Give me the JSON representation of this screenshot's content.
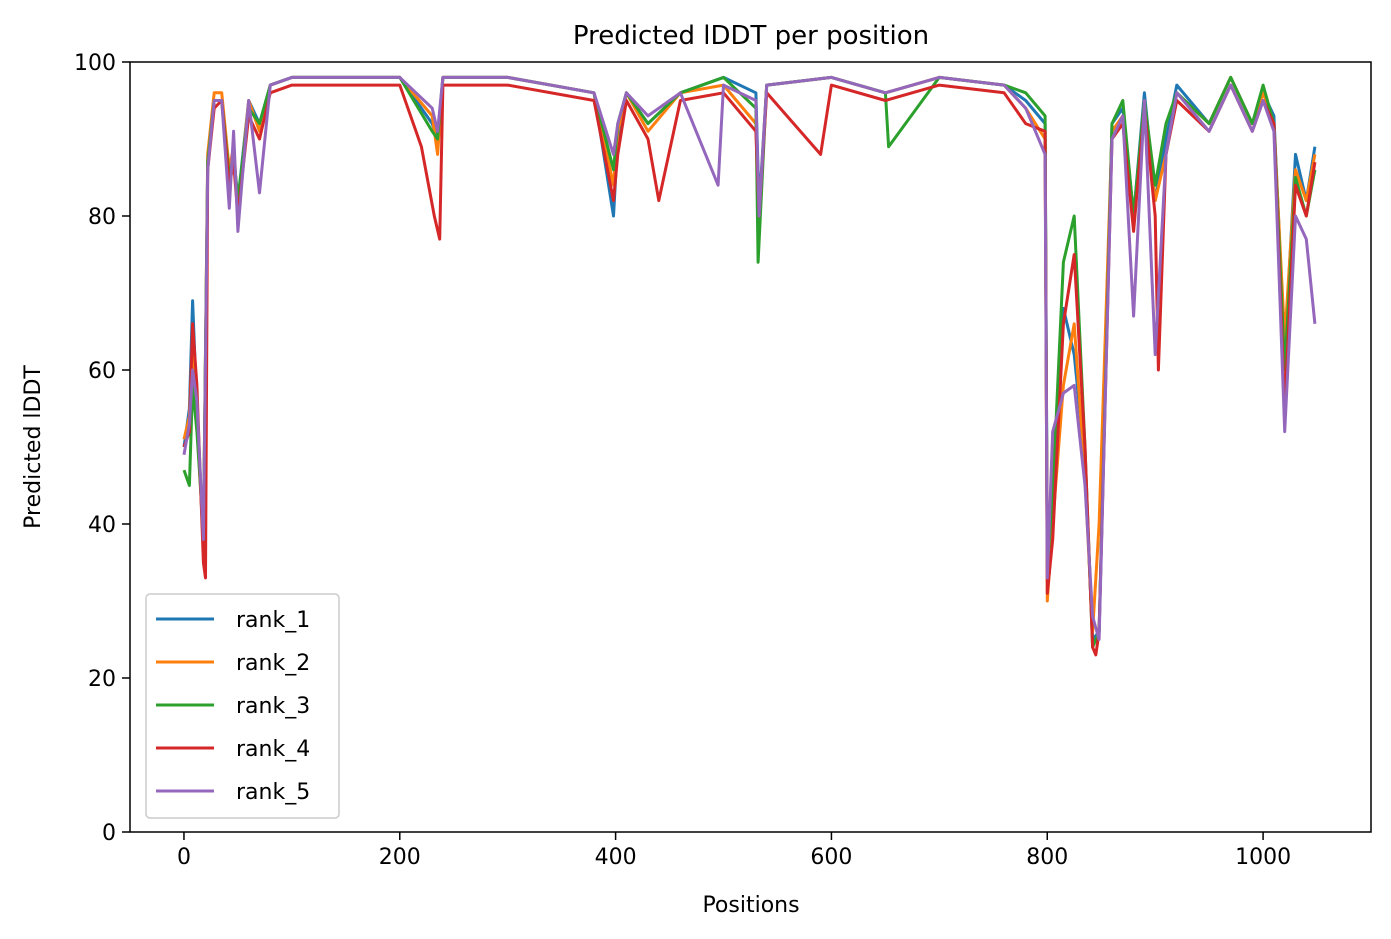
{
  "chart_data": {
    "type": "line",
    "title": "Predicted lDDT per position",
    "xlabel": "Positions",
    "ylabel": "Predicted lDDT",
    "xlim": [
      -50,
      1100
    ],
    "ylim": [
      0,
      100
    ],
    "xticks": [
      "0",
      "200",
      "400",
      "600",
      "800",
      "1000"
    ],
    "yticks": [
      "0",
      "20",
      "40",
      "60",
      "80",
      "100"
    ],
    "grid": false,
    "legend_position": "lower-left",
    "series": [
      {
        "name": "rank_1",
        "color": "#1f77b4",
        "x": [
          0,
          5,
          8,
          12,
          18,
          22,
          28,
          35,
          42,
          46,
          50,
          60,
          70,
          80,
          100,
          150,
          200,
          230,
          235,
          240,
          300,
          380,
          398,
          402,
          410,
          430,
          460,
          500,
          530,
          533,
          540,
          600,
          650,
          700,
          760,
          780,
          798,
          800,
          805,
          815,
          825,
          835,
          842,
          848,
          860,
          870,
          880,
          890,
          900,
          910,
          920,
          950,
          970,
          990,
          1000,
          1010,
          1020,
          1030,
          1040,
          1048
        ],
        "y": [
          50,
          55,
          69,
          55,
          37,
          87,
          95,
          95,
          85,
          88,
          82,
          95,
          92,
          97,
          98,
          98,
          98,
          92,
          90,
          98,
          98,
          96,
          80,
          90,
          96,
          92,
          96,
          98,
          96,
          81,
          97,
          98,
          96,
          98,
          97,
          95,
          92,
          35,
          42,
          68,
          62,
          48,
          25,
          26,
          92,
          94,
          80,
          96,
          82,
          90,
          97,
          92,
          98,
          92,
          96,
          93,
          62,
          88,
          82,
          89
        ]
      },
      {
        "name": "rank_2",
        "color": "#ff7f0e",
        "x": [
          0,
          5,
          8,
          12,
          18,
          22,
          28,
          35,
          42,
          46,
          50,
          60,
          70,
          80,
          100,
          150,
          200,
          230,
          235,
          240,
          300,
          380,
          398,
          402,
          410,
          430,
          460,
          500,
          530,
          533,
          540,
          600,
          650,
          700,
          760,
          780,
          798,
          800,
          805,
          815,
          825,
          835,
          842,
          848,
          860,
          870,
          880,
          890,
          900,
          910,
          920,
          950,
          970,
          990,
          1000,
          1010,
          1020,
          1030,
          1040,
          1048
        ],
        "y": [
          51,
          54,
          64,
          53,
          38,
          88,
          96,
          96,
          86,
          89,
          81,
          95,
          91,
          97,
          98,
          98,
          98,
          93,
          88,
          98,
          98,
          96,
          84,
          91,
          96,
          91,
          96,
          97,
          92,
          80,
          97,
          98,
          96,
          98,
          97,
          94,
          90,
          30,
          40,
          58,
          66,
          46,
          26,
          40,
          91,
          93,
          79,
          95,
          82,
          88,
          96,
          92,
          98,
          92,
          96,
          92,
          64,
          86,
          82,
          88
        ]
      },
      {
        "name": "rank_3",
        "color": "#2ca02c",
        "x": [
          0,
          5,
          8,
          12,
          18,
          22,
          28,
          35,
          42,
          46,
          50,
          60,
          70,
          80,
          100,
          150,
          200,
          230,
          235,
          240,
          300,
          380,
          398,
          402,
          410,
          430,
          460,
          500,
          530,
          532,
          540,
          600,
          650,
          653,
          700,
          760,
          780,
          798,
          800,
          805,
          815,
          825,
          835,
          842,
          848,
          860,
          870,
          880,
          890,
          900,
          910,
          920,
          950,
          970,
          990,
          1000,
          1010,
          1020,
          1030,
          1040,
          1048
        ],
        "y": [
          47,
          45,
          58,
          52,
          39,
          87,
          95,
          95,
          85,
          88,
          82,
          94,
          92,
          97,
          98,
          98,
          98,
          91,
          90,
          98,
          98,
          96,
          86,
          92,
          96,
          92,
          96,
          98,
          94,
          74,
          97,
          98,
          96,
          89,
          98,
          97,
          96,
          93,
          34,
          44,
          74,
          80,
          50,
          24,
          26,
          92,
          95,
          80,
          95,
          84,
          92,
          96,
          92,
          98,
          92,
          97,
          92,
          60,
          85,
          80,
          86
        ]
      },
      {
        "name": "rank_4",
        "color": "#d62728",
        "x": [
          0,
          5,
          8,
          12,
          18,
          20,
          22,
          28,
          35,
          42,
          46,
          50,
          60,
          70,
          80,
          100,
          150,
          200,
          220,
          232,
          237,
          240,
          300,
          380,
          398,
          402,
          410,
          430,
          440,
          460,
          500,
          530,
          533,
          540,
          590,
          600,
          650,
          700,
          760,
          780,
          798,
          800,
          805,
          815,
          825,
          835,
          842,
          845,
          848,
          860,
          870,
          880,
          890,
          900,
          903,
          910,
          920,
          950,
          970,
          990,
          1000,
          1010,
          1020,
          1030,
          1040,
          1048
        ],
        "y": [
          50,
          52,
          66,
          58,
          35,
          33,
          86,
          94,
          95,
          84,
          87,
          80,
          93,
          90,
          96,
          97,
          97,
          97,
          89,
          80,
          77,
          97,
          97,
          95,
          82,
          88,
          95,
          90,
          82,
          95,
          96,
          91,
          80,
          96,
          88,
          97,
          95,
          97,
          96,
          92,
          91,
          31,
          38,
          66,
          75,
          50,
          24,
          23,
          26,
          90,
          92,
          78,
          94,
          80,
          60,
          88,
          95,
          91,
          97,
          91,
          95,
          92,
          55,
          84,
          80,
          87
        ]
      },
      {
        "name": "rank_5",
        "color": "#9467bd",
        "x": [
          0,
          5,
          8,
          12,
          18,
          22,
          28,
          35,
          42,
          46,
          50,
          60,
          70,
          80,
          100,
          150,
          200,
          230,
          235,
          240,
          300,
          380,
          398,
          402,
          410,
          430,
          460,
          495,
          500,
          530,
          533,
          540,
          600,
          650,
          700,
          760,
          780,
          798,
          800,
          805,
          815,
          825,
          835,
          842,
          848,
          860,
          870,
          880,
          890,
          900,
          910,
          920,
          950,
          970,
          990,
          1000,
          1010,
          1020,
          1030,
          1040,
          1048
        ],
        "y": [
          49,
          53,
          60,
          56,
          38,
          86,
          95,
          95,
          81,
          91,
          78,
          95,
          83,
          97,
          98,
          98,
          98,
          94,
          91,
          98,
          98,
          96,
          88,
          92,
          96,
          93,
          96,
          84,
          97,
          95,
          80,
          97,
          98,
          96,
          98,
          97,
          94,
          88,
          33,
          52,
          57,
          58,
          45,
          28,
          25,
          90,
          93,
          67,
          95,
          62,
          88,
          96,
          91,
          97,
          91,
          95,
          91,
          52,
          80,
          77,
          66
        ]
      }
    ]
  }
}
